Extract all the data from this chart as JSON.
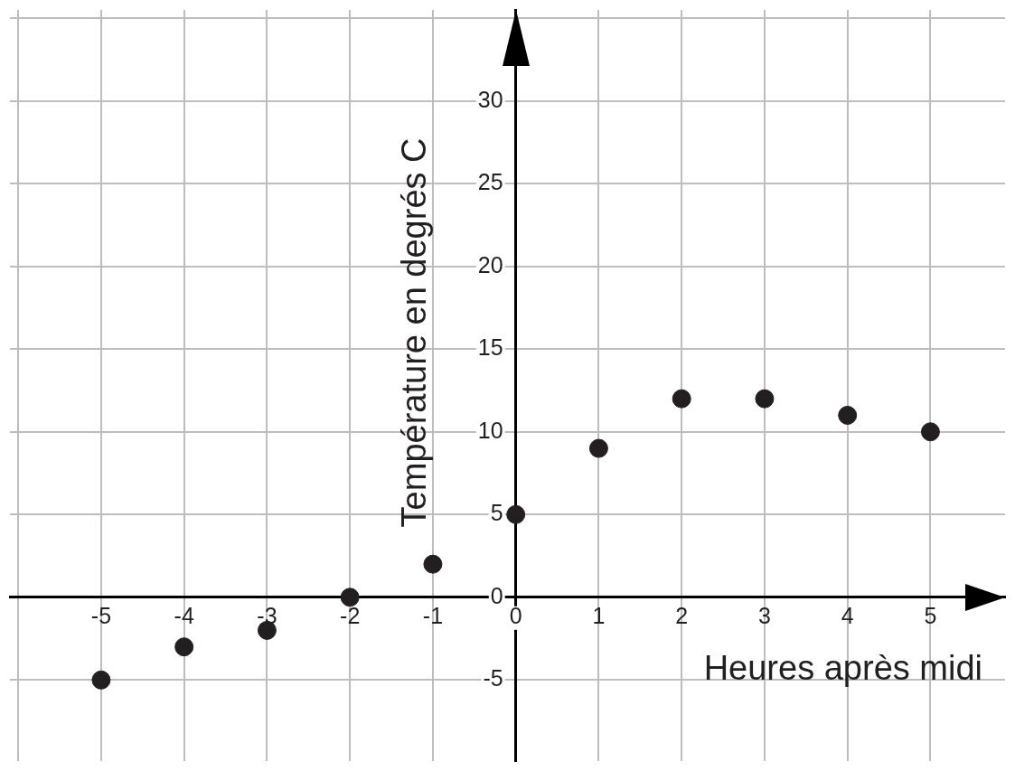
{
  "chart_data": {
    "type": "scatter",
    "xlabel": "Heures après midi",
    "ylabel": "Température en degrés C",
    "x": [
      -5,
      -4,
      -3,
      -2,
      -1,
      0,
      1,
      2,
      3,
      4,
      5
    ],
    "series": [
      {
        "color": "#231f20",
        "values": [
          -5,
          -3,
          -2,
          0,
          2,
          5,
          9,
          12,
          12,
          11,
          10
        ]
      }
    ],
    "xlim": [
      -6.1,
      5.9
    ],
    "ylim": [
      -9.9,
      35.5
    ],
    "xticks": [
      {
        "value": -6,
        "label": null
      },
      -5,
      -4,
      -3,
      -2,
      -1,
      0,
      1,
      2,
      3,
      4,
      5
    ],
    "yticks": [
      -5,
      0,
      5,
      10,
      15,
      20,
      25,
      30,
      {
        "value": 35,
        "label": null
      }
    ],
    "grid": true,
    "marker": "circle"
  }
}
